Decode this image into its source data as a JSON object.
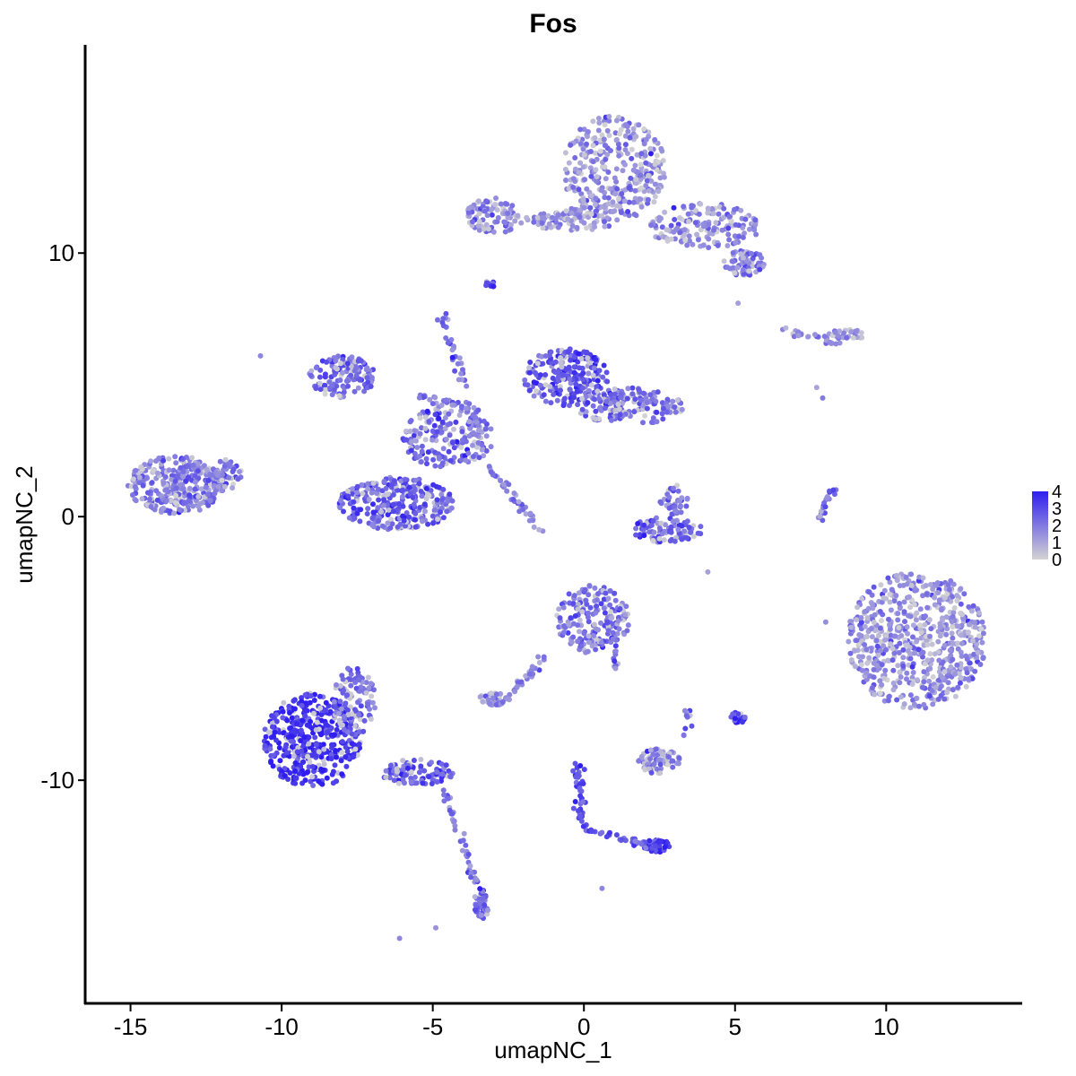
{
  "chart_data": {
    "type": "scatter",
    "title": "Fos",
    "xlabel": "umapNC_1",
    "ylabel": "umapNC_2",
    "xlim": [
      -16.5,
      14.5
    ],
    "ylim": [
      -18.5,
      17.9
    ],
    "xticks": [
      -15,
      -10,
      -5,
      0,
      5,
      10
    ],
    "xtick_labels": [
      "-15",
      "-10",
      "-5",
      "0",
      "5",
      "10"
    ],
    "yticks": [
      -10,
      0,
      10
    ],
    "ytick_labels": [
      "-10",
      "0",
      "10"
    ],
    "grid": false,
    "legend": {
      "position": "right",
      "title": "",
      "ticks": [
        0,
        1,
        2,
        3,
        4
      ],
      "labels": [
        "0",
        "1",
        "2",
        "3",
        "4"
      ],
      "color_low": "#d3d3d3",
      "color_high": "#2f1eef"
    },
    "color_scale": {
      "low": "#d3d3d3",
      "high": "#2f1eef",
      "min": 0,
      "max": 4
    },
    "clusters": [
      {
        "cx": -13.5,
        "cy": 1.2,
        "rx": 1.6,
        "ry": 1.1,
        "expr": 1.9,
        "n": 320
      },
      {
        "cx": -11.8,
        "cy": 1.6,
        "rx": 0.5,
        "ry": 0.6,
        "expr": 1.9,
        "n": 50
      },
      {
        "cx": -6.2,
        "cy": 0.5,
        "rx": 1.9,
        "ry": 1.0,
        "expr": 2.5,
        "n": 300
      },
      {
        "cx": -8.0,
        "cy": 5.3,
        "rx": 1.1,
        "ry": 0.8,
        "expr": 2.5,
        "n": 130
      },
      {
        "cx": -4.5,
        "cy": 3.0,
        "rx": 1.5,
        "ry": 1.2,
        "expr": 2.3,
        "n": 180
      },
      {
        "cx": -0.6,
        "cy": 5.3,
        "rx": 1.4,
        "ry": 1.1,
        "expr": 2.8,
        "n": 220
      },
      {
        "cx": 1.5,
        "cy": 4.2,
        "rx": 1.8,
        "ry": 0.7,
        "expr": 2.3,
        "n": 170
      },
      {
        "cx": 1.0,
        "cy": 13.2,
        "rx": 1.7,
        "ry": 2.0,
        "expr": 1.5,
        "n": 330
      },
      {
        "cx": 4.0,
        "cy": 11.0,
        "rx": 1.8,
        "ry": 0.9,
        "expr": 1.6,
        "n": 160
      },
      {
        "cx": 5.3,
        "cy": 9.6,
        "rx": 0.7,
        "ry": 0.5,
        "expr": 1.9,
        "n": 70
      },
      {
        "cx": -3.0,
        "cy": 11.4,
        "rx": 0.9,
        "ry": 0.7,
        "expr": 1.6,
        "n": 90
      },
      {
        "cx": -0.5,
        "cy": 11.2,
        "rx": 1.6,
        "ry": 0.35,
        "expr": 1.5,
        "n": 70
      },
      {
        "cx": 2.8,
        "cy": -0.5,
        "rx": 1.2,
        "ry": 0.5,
        "expr": 2.5,
        "n": 100
      },
      {
        "cx": 3.0,
        "cy": 0.6,
        "rx": 0.5,
        "ry": 0.6,
        "expr": 2.0,
        "n": 40
      },
      {
        "cx": 11.0,
        "cy": -4.7,
        "rx": 2.3,
        "ry": 2.6,
        "expr": 1.5,
        "n": 650
      },
      {
        "cx": 8.7,
        "cy": 6.9,
        "rx": 0.6,
        "ry": 0.2,
        "expr": 1.3,
        "n": 30
      },
      {
        "cx": -9.0,
        "cy": -8.5,
        "rx": 1.6,
        "ry": 1.8,
        "expr": 3.6,
        "n": 450
      },
      {
        "cx": -7.6,
        "cy": -7.0,
        "rx": 0.7,
        "ry": 1.3,
        "expr": 2.4,
        "n": 110
      },
      {
        "cx": -5.5,
        "cy": -9.7,
        "rx": 1.2,
        "ry": 0.5,
        "expr": 2.6,
        "n": 100
      },
      {
        "cx": -3.4,
        "cy": -14.7,
        "rx": 0.25,
        "ry": 0.6,
        "expr": 2.3,
        "n": 40
      },
      {
        "cx": 0.3,
        "cy": -3.9,
        "rx": 1.2,
        "ry": 1.3,
        "expr": 2.0,
        "n": 200
      },
      {
        "cx": -3.0,
        "cy": -6.9,
        "rx": 0.45,
        "ry": 0.3,
        "expr": 1.6,
        "n": 40
      },
      {
        "cx": 2.5,
        "cy": -9.3,
        "rx": 0.7,
        "ry": 0.5,
        "expr": 1.5,
        "n": 70
      },
      {
        "cx": 2.4,
        "cy": -12.5,
        "rx": 0.45,
        "ry": 0.25,
        "expr": 3.5,
        "n": 40
      },
      {
        "cx": 5.1,
        "cy": -7.6,
        "rx": 0.25,
        "ry": 0.25,
        "expr": 3.5,
        "n": 25
      },
      {
        "cx": -3.1,
        "cy": 8.8,
        "rx": 0.2,
        "ry": 0.15,
        "expr": 3.0,
        "n": 12
      }
    ],
    "trails": [
      {
        "from": [
          -4.7,
          7.6
        ],
        "to": [
          -3.3,
          2.6
        ],
        "expr": 2.0,
        "n": 45
      },
      {
        "from": [
          -3.2,
          2.0
        ],
        "to": [
          -1.3,
          -0.7
        ],
        "expr": 1.8,
        "n": 40
      },
      {
        "from": [
          -5.5,
          4.6
        ],
        "to": [
          -3.5,
          4.0
        ],
        "expr": 2.0,
        "n": 30
      },
      {
        "from": [
          -4.7,
          -10.3
        ],
        "to": [
          -3.5,
          -14.0
        ],
        "expr": 2.0,
        "n": 40
      },
      {
        "from": [
          -0.2,
          -9.4
        ],
        "to": [
          -0.1,
          -11.6
        ],
        "expr": 3.0,
        "n": 40
      },
      {
        "from": [
          0.0,
          -11.8
        ],
        "to": [
          2.2,
          -12.5
        ],
        "expr": 2.6,
        "n": 35
      },
      {
        "from": [
          -1.3,
          -5.3
        ],
        "to": [
          -2.6,
          -7.0
        ],
        "expr": 1.8,
        "n": 30
      },
      {
        "from": [
          0.9,
          -4.5
        ],
        "to": [
          1.1,
          -5.7
        ],
        "expr": 2.0,
        "n": 15
      },
      {
        "from": [
          0.4,
          11.8
        ],
        "to": [
          -1.6,
          11.2
        ],
        "expr": 1.6,
        "n": 30
      },
      {
        "from": [
          8.3,
          1.2
        ],
        "to": [
          7.8,
          0.0
        ],
        "expr": 2.0,
        "n": 20
      },
      {
        "from": [
          6.6,
          7.1
        ],
        "to": [
          8.5,
          6.6
        ],
        "expr": 1.3,
        "n": 25
      },
      {
        "from": [
          3.3,
          -8.5
        ],
        "to": [
          3.5,
          -7.3
        ],
        "expr": 1.8,
        "n": 10
      }
    ],
    "singles": [
      [
        -10.7,
        6.1
      ],
      [
        -6.1,
        -16.0
      ],
      [
        -4.9,
        -15.6
      ],
      [
        0.6,
        -14.1
      ],
      [
        7.7,
        4.9
      ],
      [
        7.9,
        4.5
      ],
      [
        4.1,
        -2.1
      ],
      [
        8.0,
        -4.0
      ],
      [
        5.1,
        8.1
      ],
      [
        -3.8,
        11.7
      ]
    ]
  }
}
